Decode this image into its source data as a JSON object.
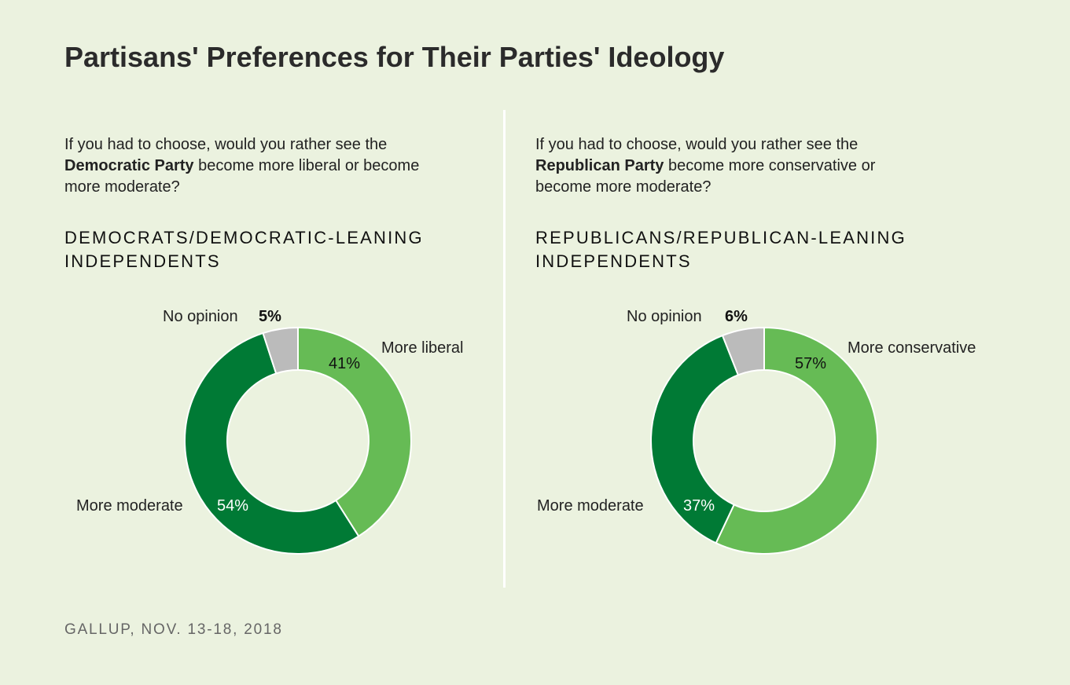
{
  "title": "Partisans' Preferences for Their Parties' Ideology",
  "source": "GALLUP, NOV. 13-18, 2018",
  "colors": {
    "background": "#ebf2df",
    "light_green": "#66bb55",
    "dark_green": "#007a35",
    "gray": "#bbbbbb"
  },
  "panels": [
    {
      "question_pre": "If you had to choose, would you rather see the ",
      "question_bold": "Democratic Party",
      "question_post": " become more liberal or become more moderate?",
      "group": "DEMOCRATS/DEMOCRATIC-LEANING INDEPENDENTS"
    },
    {
      "question_pre": "If you had to choose, would you rather see the ",
      "question_bold": "Republican Party",
      "question_post": " become more conservative or become more moderate?",
      "group": "REPUBLICANS/REPUBLICAN-LEANING INDEPENDENTS"
    }
  ],
  "chart_data": [
    {
      "type": "pie",
      "donut": true,
      "categories": [
        "More liberal",
        "More moderate",
        "No opinion"
      ],
      "values": [
        41,
        54,
        5
      ],
      "labels": [
        "41%",
        "54%",
        "5%"
      ],
      "colors": [
        "#66bb55",
        "#007a35",
        "#bbbbbb"
      ]
    },
    {
      "type": "pie",
      "donut": true,
      "categories": [
        "More conservative",
        "More moderate",
        "No opinion"
      ],
      "values": [
        57,
        37,
        6
      ],
      "labels": [
        "57%",
        "37%",
        "6%"
      ],
      "colors": [
        "#66bb55",
        "#007a35",
        "#bbbbbb"
      ]
    }
  ]
}
